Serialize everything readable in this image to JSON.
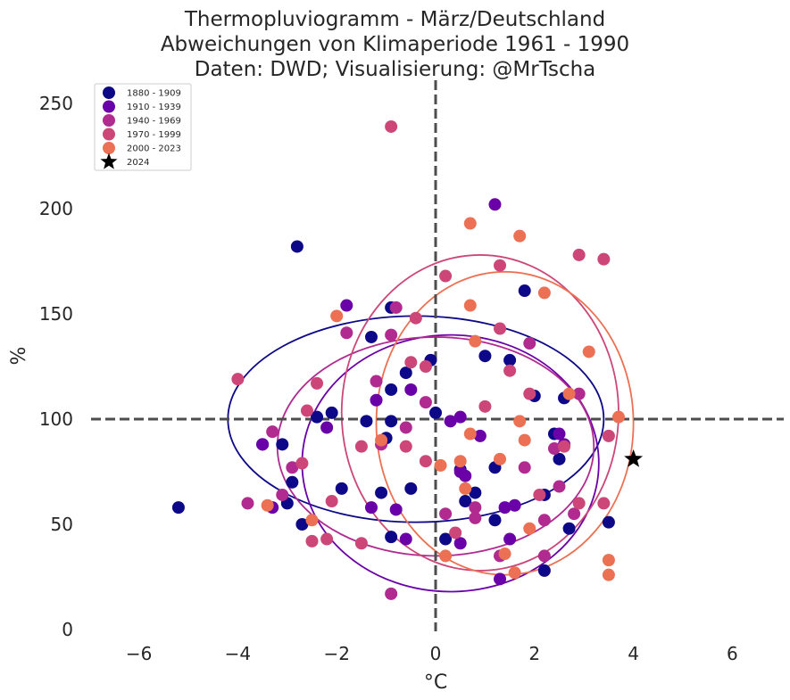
{
  "chart_data": {
    "type": "scatter",
    "title_lines": [
      "Thermopluviogramm - März/Deutschland",
      "Abweichungen von Klimaperiode 1961 - 1990",
      "Daten: DWD; Visualisierung: @MrTscha"
    ],
    "xlabel": "°C",
    "ylabel": "%",
    "xlim": [
      -7,
      7
    ],
    "ylim": [
      0,
      260
    ],
    "xticks": [
      -6,
      -4,
      -2,
      0,
      2,
      4,
      6
    ],
    "xtick_labels": [
      "−6",
      "−4",
      "−2",
      "0",
      "2",
      "4",
      "6"
    ],
    "yticks": [
      0,
      50,
      100,
      150,
      200,
      250
    ],
    "ytick_labels": [
      "0",
      "50",
      "100",
      "150",
      "200",
      "250"
    ],
    "reference_lines": {
      "x": 0,
      "y": 100
    },
    "grid": false,
    "legend_position": "top-left",
    "series": [
      {
        "name": "1880 - 1909",
        "color": "#0d0887",
        "points": [
          [
            -5.2,
            58
          ],
          [
            -2.8,
            182
          ],
          [
            -3.5,
            88
          ],
          [
            -3.1,
            88
          ],
          [
            -3.0,
            60
          ],
          [
            -2.9,
            70
          ],
          [
            -2.7,
            50
          ],
          [
            -2.4,
            101
          ],
          [
            -2.1,
            103
          ],
          [
            -1.9,
            67
          ],
          [
            -1.4,
            99
          ],
          [
            -1.3,
            139
          ],
          [
            -1.1,
            65
          ],
          [
            -0.9,
            114
          ],
          [
            -0.9,
            99
          ],
          [
            -0.9,
            44
          ],
          [
            -1.0,
            91
          ],
          [
            -0.6,
            122
          ],
          [
            -0.5,
            67
          ],
          [
            -0.9,
            153
          ],
          [
            -0.1,
            128
          ],
          [
            0.0,
            103
          ],
          [
            0.2,
            43
          ],
          [
            0.5,
            76
          ],
          [
            0.6,
            61
          ],
          [
            0.8,
            65
          ],
          [
            1.0,
            130
          ],
          [
            1.2,
            52
          ],
          [
            1.2,
            77
          ],
          [
            1.5,
            128
          ],
          [
            1.8,
            161
          ],
          [
            2.0,
            111
          ],
          [
            2.2,
            28
          ],
          [
            2.2,
            64
          ],
          [
            2.4,
            93
          ],
          [
            2.5,
            81
          ],
          [
            2.6,
            110
          ],
          [
            2.7,
            48
          ],
          [
            3.5,
            51
          ]
        ]
      },
      {
        "name": "1910 - 1939",
        "color": "#6a00a8",
        "points": [
          [
            -3.5,
            88
          ],
          [
            -3.3,
            58
          ],
          [
            -2.2,
            96
          ],
          [
            -1.8,
            154
          ],
          [
            -1.3,
            58
          ],
          [
            -1.2,
            109
          ],
          [
            -0.8,
            57
          ],
          [
            -0.6,
            43
          ],
          [
            -0.5,
            114
          ],
          [
            0.3,
            99
          ],
          [
            0.5,
            101
          ],
          [
            0.5,
            75
          ],
          [
            0.6,
            73
          ],
          [
            0.5,
            41
          ],
          [
            0.9,
            92
          ],
          [
            1.2,
            202
          ],
          [
            1.3,
            24
          ],
          [
            1.4,
            58
          ],
          [
            1.5,
            43
          ],
          [
            1.6,
            59
          ],
          [
            2.5,
            93
          ],
          [
            2.6,
            88
          ]
        ]
      },
      {
        "name": "1940 - 1969",
        "color": "#b12a90",
        "points": [
          [
            -3.8,
            60
          ],
          [
            -3.3,
            94
          ],
          [
            -3.1,
            64
          ],
          [
            -2.9,
            77
          ],
          [
            -1.8,
            141
          ],
          [
            -1.2,
            118
          ],
          [
            -1.1,
            88
          ],
          [
            -0.9,
            17
          ],
          [
            -0.9,
            140
          ],
          [
            -0.8,
            153
          ],
          [
            -0.6,
            96
          ],
          [
            -0.2,
            108
          ],
          [
            0.2,
            55
          ],
          [
            0.8,
            58
          ],
          [
            0.8,
            53
          ],
          [
            1.3,
            35
          ],
          [
            1.9,
            136
          ],
          [
            1.8,
            77
          ],
          [
            2.2,
            52
          ],
          [
            2.2,
            35
          ],
          [
            2.4,
            86
          ],
          [
            2.5,
            68
          ],
          [
            2.8,
            55
          ],
          [
            2.9,
            112
          ]
        ]
      },
      {
        "name": "1970 - 1999",
        "color": "#e16462",
        "display_color": "#cc4778",
        "points": [
          [
            -4.0,
            119
          ],
          [
            -2.6,
            104
          ],
          [
            -2.4,
            117
          ],
          [
            -2.7,
            79
          ],
          [
            -2.5,
            42
          ],
          [
            -2.2,
            43
          ],
          [
            -2.1,
            61
          ],
          [
            -1.5,
            87
          ],
          [
            -1.5,
            41
          ],
          [
            -0.9,
            239
          ],
          [
            -0.6,
            87
          ],
          [
            -0.4,
            148
          ],
          [
            -0.5,
            127
          ],
          [
            -0.2,
            125
          ],
          [
            -0.2,
            80
          ],
          [
            0.2,
            168
          ],
          [
            0.4,
            46
          ],
          [
            1.0,
            106
          ],
          [
            1.3,
            173
          ],
          [
            1.3,
            143
          ],
          [
            1.5,
            123
          ],
          [
            1.9,
            112
          ],
          [
            2.1,
            64
          ],
          [
            2.9,
            178
          ],
          [
            2.9,
            60
          ],
          [
            3.4,
            176
          ],
          [
            3.4,
            60
          ],
          [
            3.5,
            92
          ],
          [
            2.6,
            87
          ]
        ]
      },
      {
        "name": "2000 - 2023",
        "color": "#fca636",
        "display_color": "#ec7053",
        "points": [
          [
            -3.4,
            59
          ],
          [
            -2.5,
            52
          ],
          [
            -2.0,
            149
          ],
          [
            -1.1,
            90
          ],
          [
            0.1,
            78
          ],
          [
            0.2,
            35
          ],
          [
            0.5,
            80
          ],
          [
            0.6,
            67
          ],
          [
            0.7,
            93
          ],
          [
            0.7,
            193
          ],
          [
            0.8,
            137
          ],
          [
            0.7,
            154
          ],
          [
            1.3,
            81
          ],
          [
            1.4,
            36
          ],
          [
            1.6,
            27
          ],
          [
            1.7,
            99
          ],
          [
            1.7,
            187
          ],
          [
            1.8,
            90
          ],
          [
            1.9,
            48
          ],
          [
            2.2,
            160
          ],
          [
            2.7,
            112
          ],
          [
            3.1,
            132
          ],
          [
            3.5,
            33
          ],
          [
            3.5,
            26
          ],
          [
            3.7,
            101
          ]
        ]
      },
      {
        "name": "2024",
        "color": "#000000",
        "marker": "star",
        "points": [
          [
            4.0,
            81
          ]
        ]
      }
    ],
    "ellipses": [
      {
        "series": "1880 - 1909",
        "color": "#0d0887",
        "cx": -0.4,
        "cy": 100,
        "rx": 3.8,
        "ry": 49
      },
      {
        "series": "1910 - 1939",
        "color": "#6a00a8",
        "cx": 0.3,
        "cy": 79,
        "rx": 3.0,
        "ry": 61
      },
      {
        "series": "1940 - 1969",
        "color": "#b12a90",
        "cx": 0.0,
        "cy": 87,
        "rx": 3.2,
        "ry": 52
      },
      {
        "series": "1970 - 1999",
        "color": "#cc4778",
        "cx": 0.9,
        "cy": 103,
        "rx": 2.8,
        "ry": 75
      },
      {
        "series": "2000 - 2023",
        "color": "#ec7053",
        "cx": 1.4,
        "cy": 98,
        "rx": 2.6,
        "ry": 72
      }
    ]
  }
}
